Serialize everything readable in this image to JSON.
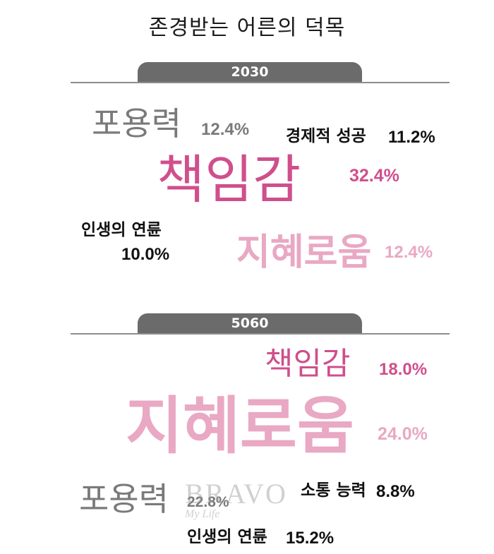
{
  "title": "존경받는 어른의 덕목",
  "colors": {
    "gray": "#7a7a7a",
    "pink_dark": "#cf4f8c",
    "pink_light": "#e9a8c3",
    "black": "#111111",
    "tab": "#6b6b6b"
  },
  "chart_data": [
    {
      "type": "word_cloud",
      "group": "2030",
      "items": [
        {
          "label": "포용력",
          "value": 12.4,
          "value_text": "12.4%"
        },
        {
          "label": "경제적 성공",
          "value": 11.2,
          "value_text": "11.2%"
        },
        {
          "label": "책임감",
          "value": 32.4,
          "value_text": "32.4%"
        },
        {
          "label": "인생의 연륜",
          "value": 10.0,
          "value_text": "10.0%"
        },
        {
          "label": "지혜로움",
          "value": 12.4,
          "value_text": "12.4%"
        }
      ]
    },
    {
      "type": "word_cloud",
      "group": "5060",
      "items": [
        {
          "label": "책임감",
          "value": 18.0,
          "value_text": "18.0%"
        },
        {
          "label": "지혜로움",
          "value": 24.0,
          "value_text": "24.0%"
        },
        {
          "label": "포용력",
          "value": 22.8,
          "value_text": "22.8%"
        },
        {
          "label": "소통 능력",
          "value": 8.8,
          "value_text": "8.8%"
        },
        {
          "label": "인생의 연륜",
          "value": 15.2,
          "value_text": "15.2%"
        }
      ]
    }
  ],
  "watermark": {
    "brand": "BRAVO",
    "tagline": "My Life"
  }
}
